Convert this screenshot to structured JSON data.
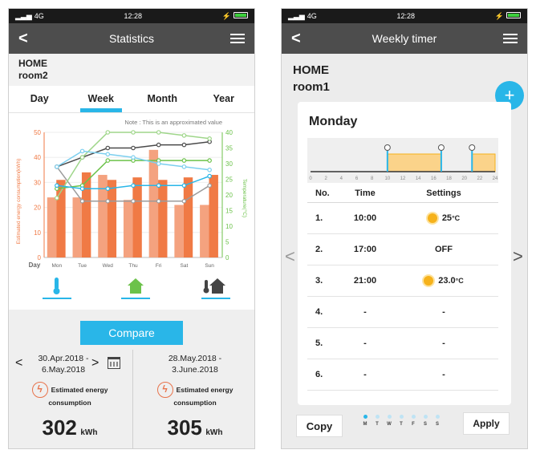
{
  "colors": {
    "accent": "#29b6e8",
    "bar_light": "#f4a27f",
    "bar_dark": "#f07a45",
    "axis_left": "#f07a45",
    "axis_right": "#6cc24a"
  },
  "left": {
    "status": {
      "network": "4G",
      "time": "12:28"
    },
    "nav": {
      "title": "Statistics"
    },
    "location": {
      "home": "HOME",
      "room": "room2"
    },
    "tabs": [
      {
        "label": "Day"
      },
      {
        "label": "Week"
      },
      {
        "label": "Month"
      },
      {
        "label": "Year"
      }
    ],
    "active_tab": "Week",
    "compare_label": "Compare",
    "period_a": {
      "range_line1": "30.Apr.2018 -",
      "range_line2": "6.May.2018",
      "est_line1": "Estimated energy",
      "est_line2": "consumption",
      "value": "302",
      "unit": "kWh"
    },
    "period_b": {
      "range_line1": "28.May.2018 -",
      "range_line2": "3.June.2018",
      "est_line1": "Estimated energy",
      "est_line2": "consumption",
      "value": "305",
      "unit": "kWh"
    },
    "legend_icons": [
      "thermometer-icon",
      "home-icon",
      "house-temperature-icon"
    ]
  },
  "chart_data": {
    "type": "bar",
    "note": "Note : This is an approximated value",
    "xlabel": "Day",
    "ylabel": "Estimated energy consumption(kWh)",
    "y2label": "Temperature(°C)",
    "categories": [
      "Mon",
      "Tue",
      "Wed",
      "Thu",
      "Fri",
      "Sat",
      "Sun"
    ],
    "ylim": [
      0,
      50
    ],
    "y2lim": [
      0,
      40
    ],
    "yticks": [
      0,
      10,
      20,
      30,
      40,
      50
    ],
    "y2ticks": [
      0,
      5,
      10,
      15,
      20,
      25,
      30,
      35,
      40
    ],
    "bar_series": [
      {
        "values": [
          24,
          24,
          33,
          23,
          43,
          21,
          21
        ]
      },
      {
        "values": [
          31,
          34,
          31,
          32,
          31,
          32,
          33
        ]
      }
    ],
    "line_series": [
      {
        "color": "#4a4a4a",
        "values": [
          29,
          32,
          35,
          35,
          36,
          36,
          37
        ]
      },
      {
        "color": "#9b9b9b",
        "values": [
          29,
          18,
          18,
          18,
          18,
          18,
          23
        ]
      },
      {
        "color": "#9fd68a",
        "values": [
          19,
          32,
          40,
          40,
          40,
          39,
          38
        ]
      },
      {
        "color": "#6cc24a",
        "values": [
          22,
          23,
          31,
          31,
          31,
          31,
          31
        ]
      },
      {
        "color": "#7ccfef",
        "values": [
          29,
          34,
          33,
          32,
          30,
          29,
          28
        ]
      },
      {
        "color": "#29b6e8",
        "values": [
          23,
          22,
          22,
          23,
          23,
          23,
          26
        ]
      }
    ]
  },
  "right": {
    "status": {
      "network": "4G",
      "time": "12:28"
    },
    "nav": {
      "title": "Weekly timer"
    },
    "location": {
      "home": "HOME",
      "room": "room1"
    },
    "add_label": "+",
    "day_title": "Monday",
    "timeline_ticks": [
      "0",
      "2",
      "4",
      "6",
      "8",
      "10",
      "12",
      "14",
      "16",
      "18",
      "20",
      "22",
      "24"
    ],
    "timeline_segments": [
      {
        "from": 10,
        "to": 17
      },
      {
        "from": 21,
        "to": 24
      }
    ],
    "timeline_markers": [
      10,
      17,
      21
    ],
    "table_headers": {
      "no": "No.",
      "time": "Time",
      "settings": "Settings"
    },
    "rows": [
      {
        "no": "1.",
        "time": "10:00",
        "setting": "25",
        "unit": "°C",
        "icon": "sun-icon"
      },
      {
        "no": "2.",
        "time": "17:00",
        "setting": "OFF",
        "unit": "",
        "icon": ""
      },
      {
        "no": "3.",
        "time": "21:00",
        "setting": "23.0",
        "unit": "°C",
        "icon": "sun-icon"
      },
      {
        "no": "4.",
        "time": "-",
        "setting": "-",
        "unit": "",
        "icon": ""
      },
      {
        "no": "5.",
        "time": "-",
        "setting": "-",
        "unit": "",
        "icon": ""
      },
      {
        "no": "6.",
        "time": "-",
        "setting": "-",
        "unit": "",
        "icon": ""
      }
    ],
    "copy_label": "Copy",
    "apply_label": "Apply",
    "week_days": [
      "M",
      "T",
      "W",
      "T",
      "F",
      "S",
      "S"
    ],
    "active_day_index": 0
  }
}
